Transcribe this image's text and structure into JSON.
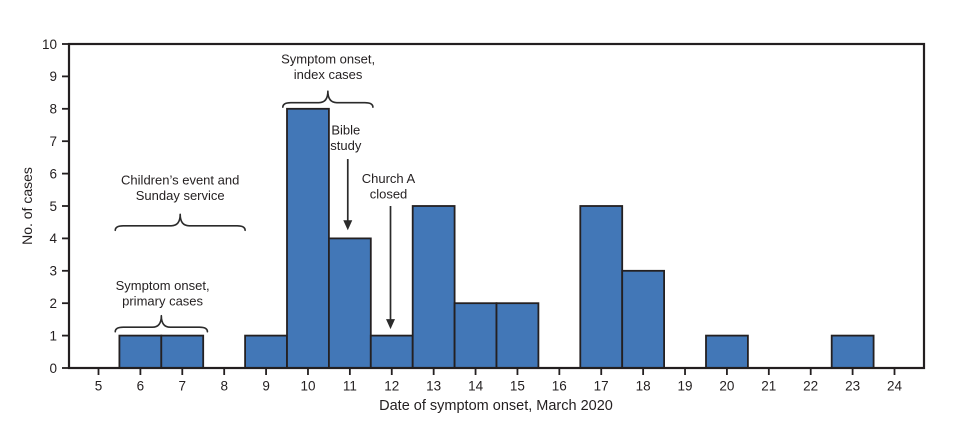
{
  "chart_data": {
    "type": "bar",
    "title": "",
    "xlabel": "Date of symptom onset, March 2020",
    "ylabel": "No. of cases",
    "categories": [
      5,
      6,
      7,
      8,
      9,
      10,
      11,
      12,
      13,
      14,
      15,
      16,
      17,
      18,
      19,
      20,
      21,
      22,
      23,
      24
    ],
    "values": [
      0,
      1,
      1,
      0,
      1,
      8,
      4,
      1,
      5,
      2,
      2,
      0,
      5,
      3,
      0,
      1,
      0,
      0,
      1,
      0
    ],
    "ylim": [
      0,
      10
    ],
    "y_ticks": [
      0,
      1,
      2,
      3,
      4,
      5,
      6,
      7,
      8,
      9,
      10
    ],
    "grid": "off",
    "legend": "none",
    "colors": {
      "bar_fill": "#4277B7",
      "bar_stroke": "#242021",
      "axis": "#231F20",
      "text": "#231F20",
      "annotation": "#2B2B2B",
      "background": "#FFFFFF"
    },
    "annotations": [
      {
        "kind": "brace",
        "name": "primary-cases",
        "lines": [
          "Symptom onset,",
          "primary cases"
        ],
        "x_from": 5.4,
        "x_to": 7.6,
        "base_value": 1.12,
        "text_x": 6.53,
        "text_center_value": 2.32
      },
      {
        "kind": "brace",
        "name": "childrens-event",
        "lines": [
          "Children’s event and",
          "Sunday service"
        ],
        "x_from": 5.4,
        "x_to": 8.5,
        "base_value": 4.25,
        "text_x": 6.95,
        "text_center_value": 5.57
      },
      {
        "kind": "brace",
        "name": "index-cases",
        "lines": [
          "Symptom onset,",
          "index cases"
        ],
        "x_from": 9.4,
        "x_to": 11.55,
        "base_value": 8.05,
        "text_x": 10.48,
        "text_center_value": 9.3
      },
      {
        "kind": "arrow",
        "name": "bible-study",
        "lines": [
          "Bible",
          "study"
        ],
        "x_at": 10.95,
        "text_center_value": 7.12,
        "from_value": 6.45,
        "tip_value": 4.25
      },
      {
        "kind": "arrow",
        "name": "church-a-closed",
        "lines": [
          "Church A",
          "closed"
        ],
        "x_at": 11.97,
        "text_center_value": 5.62,
        "from_value": 5.0,
        "tip_value": 1.2
      }
    ]
  }
}
